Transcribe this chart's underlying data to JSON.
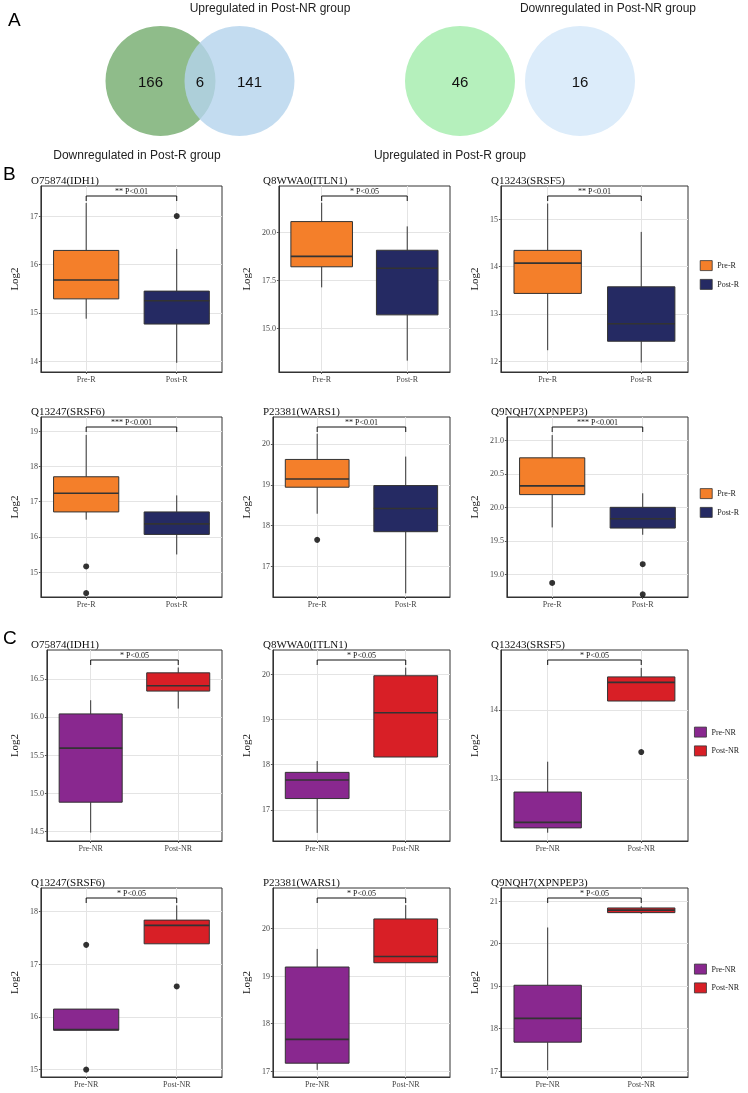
{
  "chart_data": [
    {
      "type": "other",
      "categories": [
        "Downregulated in Post-R group",
        null,
        "Upregulated in Post-NR group"
      ],
      "values": [
        166,
        6,
        141
      ],
      "colors": [
        "#8fbc8a",
        null,
        "#b4d3ec"
      ],
      "data_labels": true,
      "annotations": [
        "A"
      ]
    },
    {
      "type": "other",
      "categories": [
        "Upregulated in Post-R group",
        null,
        "Downregulated in Post-NR group"
      ],
      "values": [
        46,
        null,
        16
      ],
      "colors": [
        "#b5f0bc",
        null,
        "#dcecfa"
      ],
      "data_labels": true
    },
    {
      "type": "box",
      "title": "O75874(IDH1)",
      "ylabel": "Log2",
      "categories": [
        "Pre-R",
        "Post-R"
      ],
      "series": [
        {
          "color": "#f47f2a",
          "boxes": [
            {
              "low": 14.88,
              "q1": 15.29,
              "median": 15.68,
              "q3": 16.29,
              "high": 17.27
            },
            null
          ]
        },
        {
          "color": "#252a63",
          "boxes": [
            null,
            {
              "low": 13.97,
              "q1": 14.77,
              "median": 15.25,
              "q3": 15.45,
              "high": 16.32,
              "outliers": [
                17.0
              ]
            }
          ]
        }
      ],
      "ylim": [
        13.78,
        17.62
      ],
      "yticks": [
        14,
        15,
        16,
        17
      ],
      "grid": true,
      "legend": false,
      "annotations": [
        "B",
        "** P<0.01"
      ]
    },
    {
      "type": "box",
      "title": "Q8WWA0(ITLN1)",
      "ylabel": "Log2",
      "categories": [
        "Pre-R",
        "Post-R"
      ],
      "series": [
        {
          "color": "#f47f2a",
          "boxes": [
            {
              "low": 17.13,
              "q1": 18.2,
              "median": 18.74,
              "q3": 20.55,
              "high": 21.53
            },
            null
          ]
        },
        {
          "color": "#252a63",
          "boxes": [
            null,
            {
              "low": 13.32,
              "q1": 15.7,
              "median": 18.12,
              "q3": 19.06,
              "high": 20.3
            }
          ]
        }
      ],
      "ylim": [
        12.73,
        22.4
      ],
      "yticks": [
        {
          "value": 15,
          "label": "15.0"
        },
        17.5,
        {
          "value": 20,
          "label": "20.0"
        }
      ],
      "grid": true,
      "legend": false,
      "annotations": [
        "* P<0.05"
      ]
    },
    {
      "type": "box",
      "title": "Q13243(SRSF5)",
      "ylabel": "Log2",
      "categories": [
        "Pre-R",
        "Post-R"
      ],
      "series": [
        {
          "name": "Pre-R",
          "color": "#f47f2a",
          "boxes": [
            {
              "low": 12.23,
              "q1": 13.43,
              "median": 14.07,
              "q3": 14.34,
              "high": 15.33
            },
            null
          ]
        },
        {
          "name": "Post-R",
          "color": "#252a63",
          "boxes": [
            null,
            {
              "low": 11.97,
              "q1": 12.42,
              "median": 12.79,
              "q3": 13.57,
              "high": 14.73
            }
          ]
        }
      ],
      "ylim": [
        11.77,
        15.7
      ],
      "yticks": [
        12,
        13,
        14,
        15
      ],
      "grid": true,
      "legend": "right",
      "annotations": [
        "** P<0.01"
      ]
    },
    {
      "type": "box",
      "title": "Q13247(SRSF6)",
      "ylabel": "Log2",
      "categories": [
        "Pre-R",
        "Post-R"
      ],
      "series": [
        {
          "color": "#f47f2a",
          "boxes": [
            {
              "low": 16.49,
              "q1": 16.71,
              "median": 17.24,
              "q3": 17.71,
              "high": 18.9,
              "outliers": [
                15.16,
                14.4
              ]
            },
            null
          ]
        },
        {
          "color": "#252a63",
          "boxes": [
            null,
            {
              "low": 15.5,
              "q1": 16.07,
              "median": 16.37,
              "q3": 16.71,
              "high": 17.18
            }
          ]
        }
      ],
      "ylim": [
        14.29,
        19.41
      ],
      "yticks": [
        15,
        16,
        17,
        18,
        19
      ],
      "grid": true,
      "legend": false,
      "annotations": [
        "*** P<0.001"
      ]
    },
    {
      "type": "box",
      "title": "P23381(WARS1)",
      "ylabel": "Log2",
      "categories": [
        "Pre-R",
        "Post-R"
      ],
      "series": [
        {
          "color": "#f47f2a",
          "boxes": [
            {
              "low": 18.29,
              "q1": 18.94,
              "median": 19.14,
              "q3": 19.62,
              "high": 20.25,
              "outliers": [
                17.65
              ]
            },
            null
          ]
        },
        {
          "color": "#252a63",
          "boxes": [
            null,
            {
              "low": 16.34,
              "q1": 17.85,
              "median": 18.42,
              "q3": 18.98,
              "high": 19.69
            }
          ]
        }
      ],
      "ylim": [
        16.25,
        20.66
      ],
      "yticks": [
        17,
        18,
        19,
        20
      ],
      "grid": true,
      "legend": false,
      "annotations": [
        "** P<0.01"
      ]
    },
    {
      "type": "box",
      "title": "Q9NQH7(XPNPEP3)",
      "ylabel": "Log2",
      "categories": [
        "Pre-R",
        "Post-R"
      ],
      "series": [
        {
          "name": "Pre-R",
          "color": "#f47f2a",
          "boxes": [
            {
              "low": 19.7,
              "q1": 20.19,
              "median": 20.32,
              "q3": 20.74,
              "high": 21.08,
              "outliers": [
                18.87
              ]
            },
            null
          ]
        },
        {
          "name": "Post-R",
          "color": "#252a63",
          "boxes": [
            null,
            {
              "low": 19.59,
              "q1": 19.69,
              "median": 19.83,
              "q3": 20.0,
              "high": 20.21,
              "outliers": [
                19.15,
                18.7
              ]
            }
          ]
        }
      ],
      "ylim": [
        18.66,
        21.35
      ],
      "yticks": [
        {
          "value": 19,
          "label": "19.0"
        },
        19.5,
        {
          "value": 20,
          "label": "20.0"
        },
        20.5,
        {
          "value": 21,
          "label": "21.0"
        }
      ],
      "grid": true,
      "legend": "right",
      "annotations": [
        "*** P<0.001"
      ]
    },
    {
      "type": "box",
      "title": "O75874(IDH1)",
      "ylabel": "Log2",
      "categories": [
        "Pre-NR",
        "Post-NR"
      ],
      "series": [
        {
          "color": "#89288f",
          "boxes": [
            {
              "low": 14.48,
              "q1": 14.88,
              "median": 15.59,
              "q3": 16.04,
              "high": 16.22
            },
            null
          ]
        },
        {
          "color": "#d81f26",
          "boxes": [
            null,
            {
              "low": 16.11,
              "q1": 16.34,
              "median": 16.41,
              "q3": 16.58,
              "high": 16.65
            }
          ]
        }
      ],
      "ylim": [
        14.37,
        16.88
      ],
      "yticks": [
        14.5,
        {
          "value": 15,
          "label": "15.0"
        },
        15.5,
        {
          "value": 16,
          "label": "16.0"
        },
        16.5
      ],
      "grid": true,
      "legend": false,
      "annotations": [
        "C",
        "* P<0.05"
      ]
    },
    {
      "type": "box",
      "title": "Q8WWA0(ITLN1)",
      "ylabel": "Log2",
      "categories": [
        "Pre-NR",
        "Post-NR"
      ],
      "series": [
        {
          "color": "#89288f",
          "boxes": [
            {
              "low": 16.49,
              "q1": 17.25,
              "median": 17.66,
              "q3": 17.83,
              "high": 18.08
            },
            null
          ]
        },
        {
          "color": "#d81f26",
          "boxes": [
            null,
            {
              "low": 18.17,
              "q1": 18.17,
              "median": 19.15,
              "q3": 19.97,
              "high": 20.15
            }
          ]
        }
      ],
      "ylim": [
        16.31,
        20.54
      ],
      "yticks": [
        17,
        18,
        19,
        20
      ],
      "grid": true,
      "legend": false,
      "annotations": [
        "* P<0.05"
      ]
    },
    {
      "type": "box",
      "title": "Q13243(SRSF5)",
      "ylabel": "Log2",
      "categories": [
        "Pre-NR",
        "Post-NR"
      ],
      "series": [
        {
          "name": "Pre-NR",
          "color": "#89288f",
          "boxes": [
            {
              "low": 12.22,
              "q1": 12.29,
              "median": 12.37,
              "q3": 12.81,
              "high": 13.25
            },
            null
          ]
        },
        {
          "name": "Post-NR",
          "color": "#d81f26",
          "boxes": [
            null,
            {
              "low": 14.13,
              "q1": 14.13,
              "median": 14.4,
              "q3": 14.48,
              "high": 14.61,
              "outliers": [
                13.39
              ]
            }
          ]
        }
      ],
      "ylim": [
        12.1,
        14.87
      ],
      "yticks": [
        13,
        14
      ],
      "grid": true,
      "legend": "right",
      "annotations": [
        "* P<0.05"
      ]
    },
    {
      "type": "box",
      "title": "Q13247(SRSF6)",
      "ylabel": "Log2",
      "categories": [
        "Pre-NR",
        "Post-NR"
      ],
      "series": [
        {
          "color": "#89288f",
          "boxes": [
            {
              "low": 15.75,
              "q1": 15.75,
              "median": 15.76,
              "q3": 16.15,
              "high": 16.15,
              "outliers": [
                17.37,
                15.0
              ]
            },
            null
          ]
        },
        {
          "color": "#d81f26",
          "boxes": [
            null,
            {
              "low": 17.39,
              "q1": 17.39,
              "median": 17.74,
              "q3": 17.84,
              "high": 18.12,
              "outliers": [
                16.58
              ]
            }
          ]
        }
      ],
      "ylim": [
        14.86,
        18.45
      ],
      "yticks": [
        15,
        16,
        17,
        18
      ],
      "grid": true,
      "legend": false,
      "annotations": [
        "* P<0.05"
      ]
    },
    {
      "type": "box",
      "title": "P23381(WARS1)",
      "ylabel": "Log2",
      "categories": [
        "Pre-NR",
        "Post-NR"
      ],
      "series": [
        {
          "color": "#89288f",
          "boxes": [
            {
              "low": 17.03,
              "q1": 17.17,
              "median": 17.67,
              "q3": 19.19,
              "high": 19.57
            },
            null
          ]
        },
        {
          "color": "#d81f26",
          "boxes": [
            null,
            {
              "low": 19.28,
              "q1": 19.28,
              "median": 19.41,
              "q3": 20.2,
              "high": 20.49
            }
          ]
        }
      ],
      "ylim": [
        16.88,
        20.85
      ],
      "yticks": [
        17,
        18,
        19,
        20
      ],
      "grid": true,
      "legend": false,
      "annotations": [
        "* P<0.05"
      ]
    },
    {
      "type": "box",
      "title": "Q9NQH7(XPNPEP3)",
      "ylabel": "Log2",
      "categories": [
        "Pre-NR",
        "Post-NR"
      ],
      "series": [
        {
          "name": "Pre-NR",
          "color": "#89288f",
          "boxes": [
            {
              "low": 17.02,
              "q1": 17.68,
              "median": 18.24,
              "q3": 19.02,
              "high": 20.38
            },
            null
          ]
        },
        {
          "name": "Post-NR",
          "color": "#d81f26",
          "boxes": [
            null,
            {
              "low": 20.7,
              "q1": 20.73,
              "median": 20.79,
              "q3": 20.84,
              "high": 20.88
            }
          ]
        }
      ],
      "ylim": [
        16.86,
        21.31
      ],
      "yticks": [
        17,
        18,
        19,
        20,
        21
      ],
      "grid": true,
      "legend": "right",
      "annotations": [
        "* P<0.05"
      ]
    }
  ]
}
